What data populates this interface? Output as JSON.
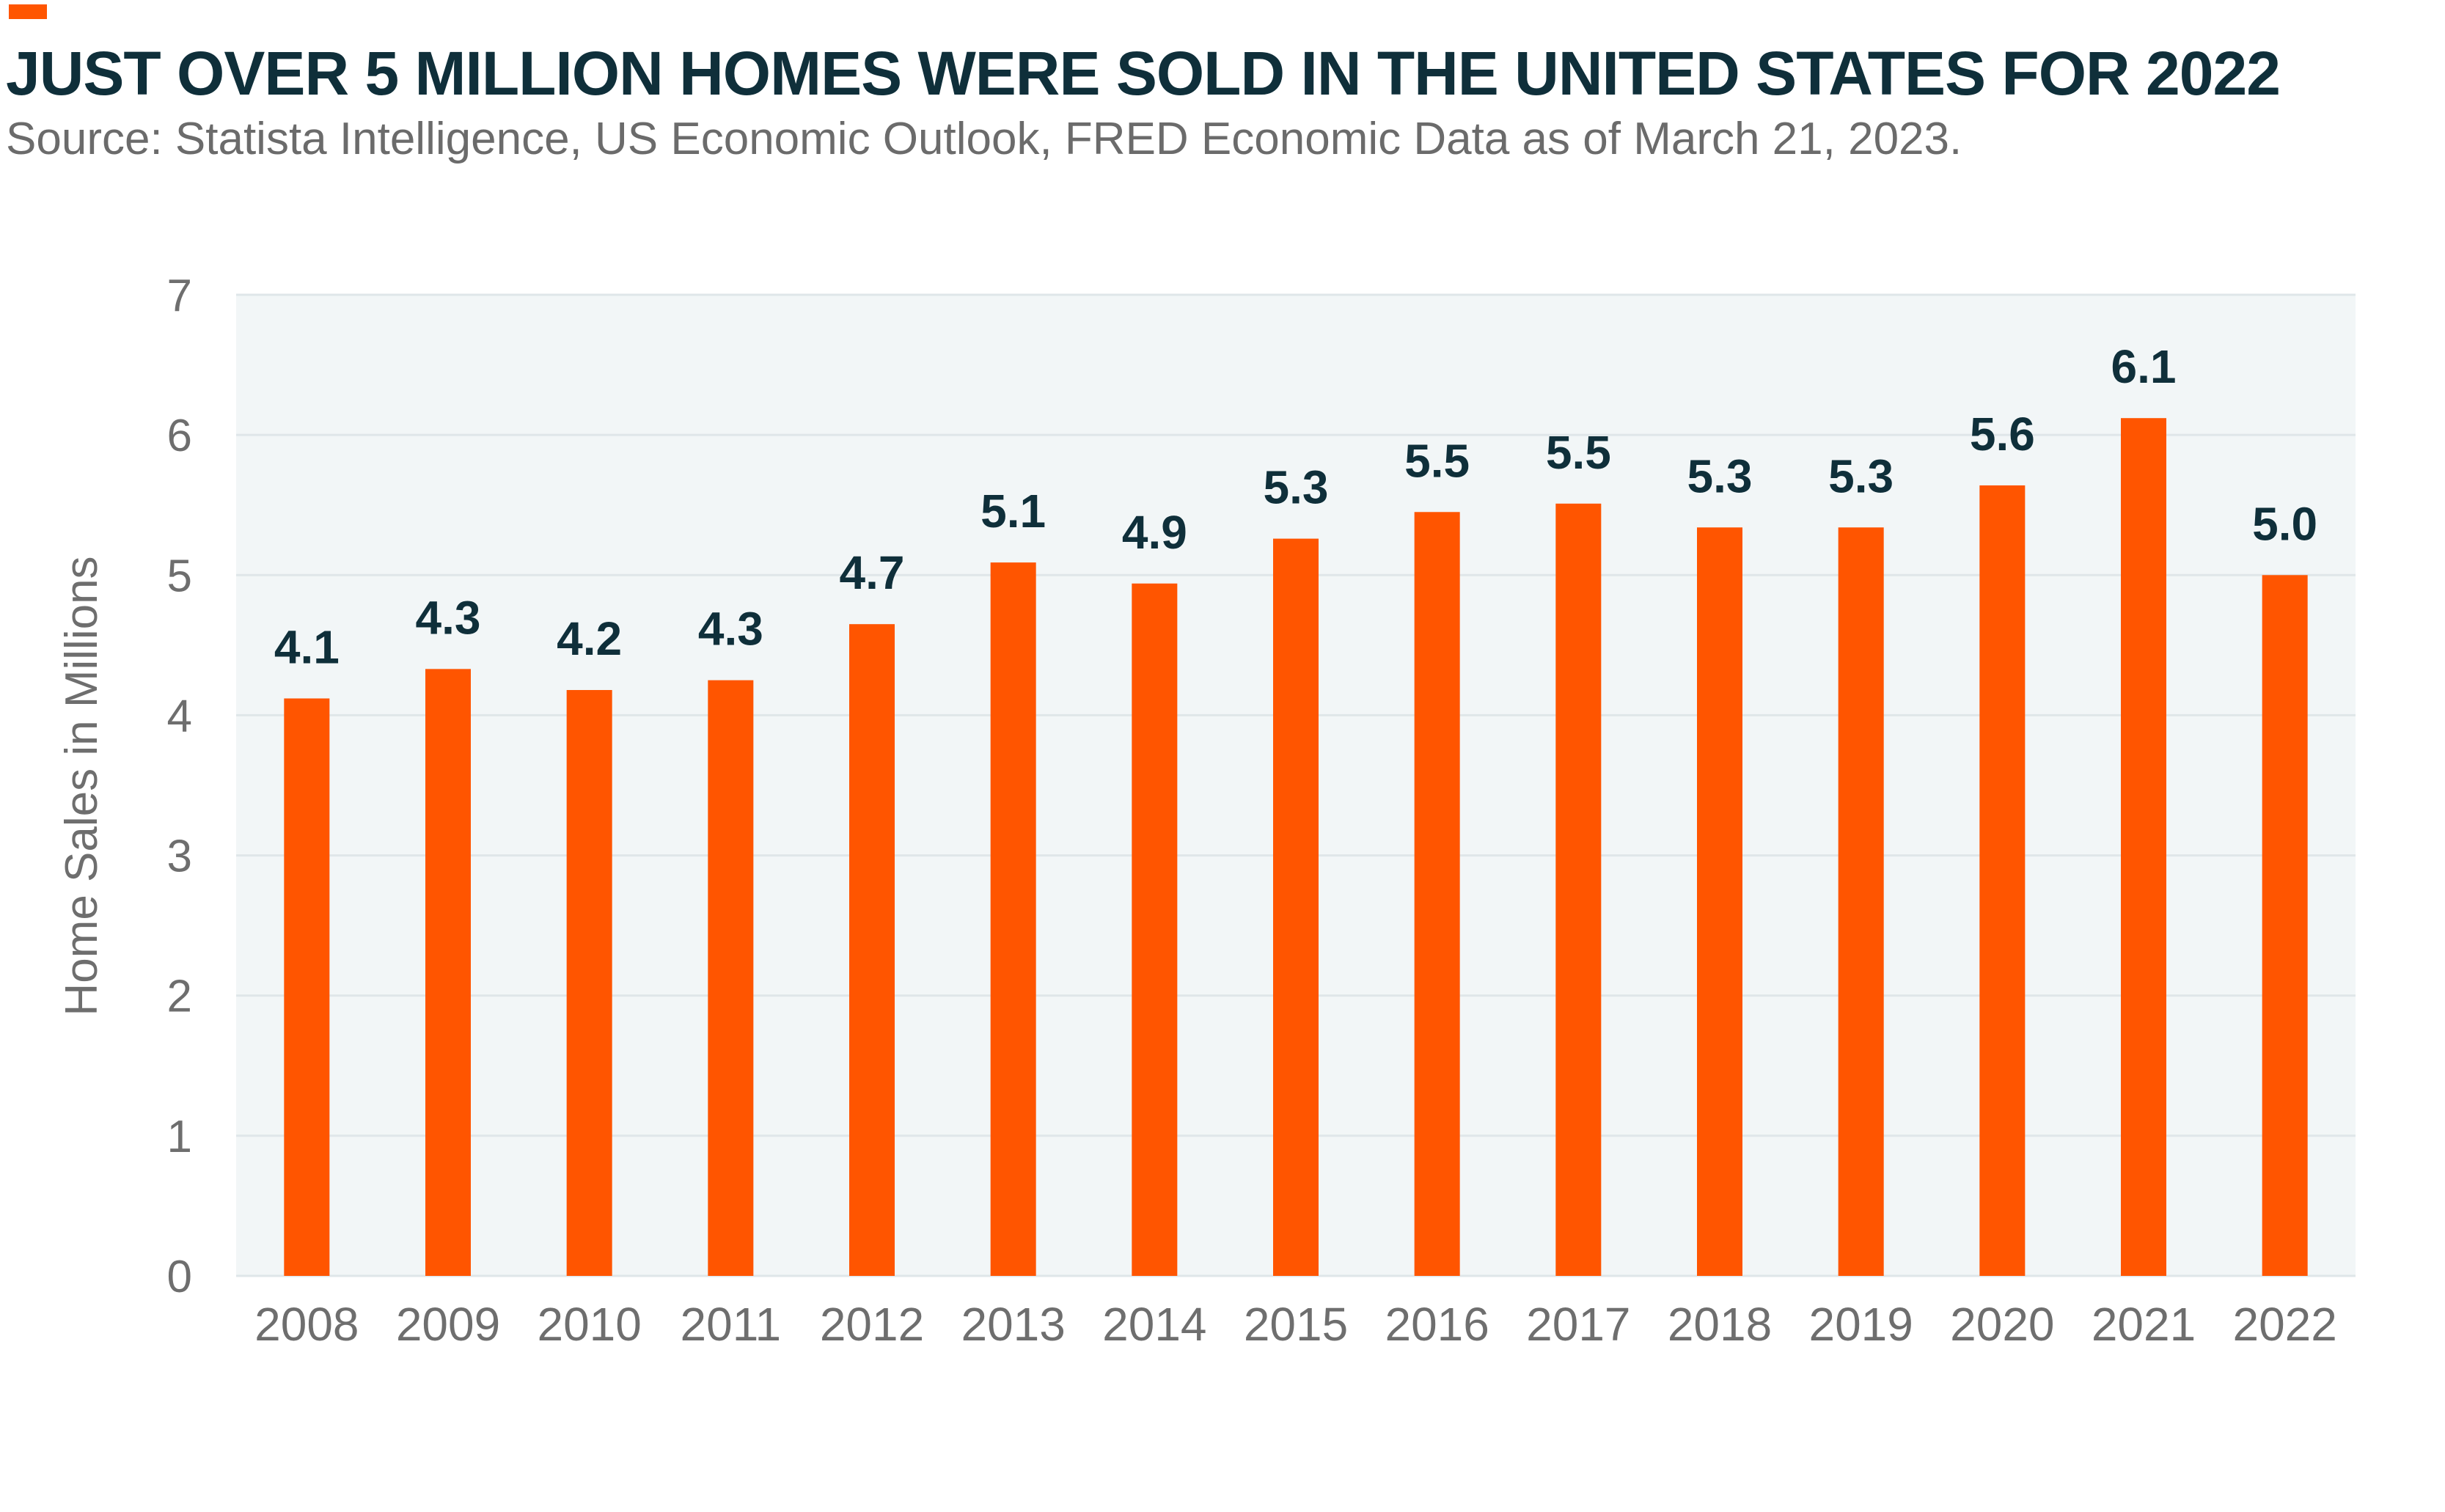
{
  "colors": {
    "accent": "#ff5500",
    "title": "#0f2f3a",
    "source": "#6b6b6b",
    "plot_bg": "#f2f6f7",
    "gridline": "#dfe6e9",
    "axis_text": "#6e6e6e",
    "data_label": "#0f2f3a"
  },
  "chart_data": {
    "type": "bar",
    "title": "JUST OVER 5 MILLION HOMES WERE SOLD IN THE UNITED STATES FOR 2022",
    "subtitle": "Source: Statista Intelligence, US Economic Outlook, FRED Economic Data as of March 21, 2023.",
    "xlabel": "",
    "ylabel": "Home Sales in Millions",
    "ylim": [
      0,
      7
    ],
    "yticks": [
      0,
      1,
      2,
      3,
      4,
      5,
      6,
      7
    ],
    "grid": true,
    "legend": "none",
    "categories": [
      "2008",
      "2009",
      "2010",
      "2011",
      "2012",
      "2013",
      "2014",
      "2015",
      "2016",
      "2017",
      "2018",
      "2019",
      "2020",
      "2021",
      "2022"
    ],
    "values": [
      4.12,
      4.33,
      4.18,
      4.25,
      4.65,
      5.09,
      4.94,
      5.26,
      5.45,
      5.51,
      5.34,
      5.34,
      5.64,
      6.12,
      5.0
    ],
    "data_labels": [
      "4.1",
      "4.3",
      "4.2",
      "4.3",
      "4.7",
      "5.1",
      "4.9",
      "5.3",
      "5.5",
      "5.5",
      "5.3",
      "5.3",
      "5.6",
      "6.1",
      "5.0"
    ]
  }
}
